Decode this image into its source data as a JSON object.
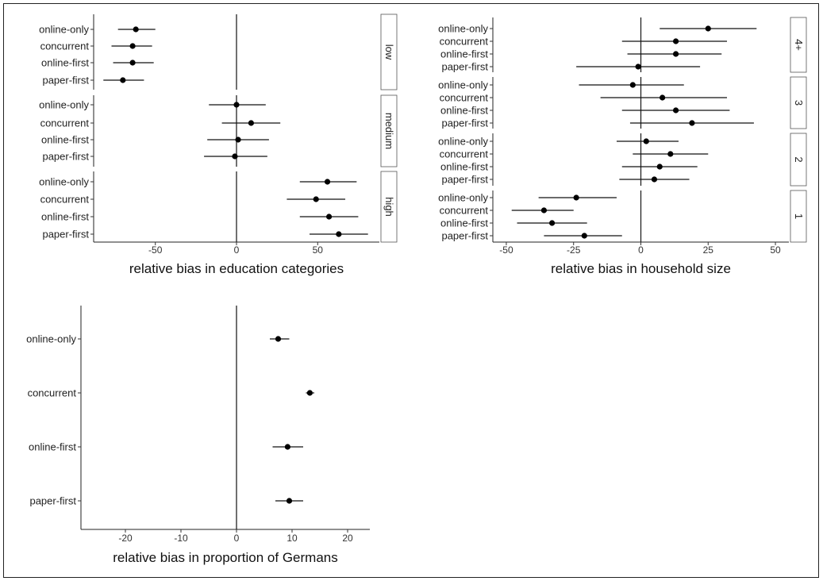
{
  "chart_data": [
    {
      "type": "scatter",
      "subtype": "dot-and-whisker, faceted by education category",
      "xlabel": "relative bias in education categories",
      "xlim": [
        -88,
        88
      ],
      "xticks": [
        -50,
        0,
        50
      ],
      "reference_line": 0,
      "categories": [
        "online-only",
        "concurrent",
        "online-first",
        "paper-first"
      ],
      "facets": [
        {
          "label": "low",
          "points": [
            {
              "category": "online-only",
              "estimate": -62,
              "lower": -73,
              "upper": -50
            },
            {
              "category": "concurrent",
              "estimate": -64,
              "lower": -77,
              "upper": -52
            },
            {
              "category": "online-first",
              "estimate": -64,
              "lower": -76,
              "upper": -51
            },
            {
              "category": "paper-first",
              "estimate": -70,
              "lower": -82,
              "upper": -57
            }
          ]
        },
        {
          "label": "medium",
          "points": [
            {
              "category": "online-only",
              "estimate": 0,
              "lower": -17,
              "upper": 18
            },
            {
              "category": "concurrent",
              "estimate": 9,
              "lower": -9,
              "upper": 27
            },
            {
              "category": "online-first",
              "estimate": 1,
              "lower": -18,
              "upper": 20
            },
            {
              "category": "paper-first",
              "estimate": -1,
              "lower": -20,
              "upper": 19
            }
          ]
        },
        {
          "label": "high",
          "points": [
            {
              "category": "online-only",
              "estimate": 56,
              "lower": 39,
              "upper": 74
            },
            {
              "category": "concurrent",
              "estimate": 49,
              "lower": 31,
              "upper": 67
            },
            {
              "category": "online-first",
              "estimate": 57,
              "lower": 39,
              "upper": 75
            },
            {
              "category": "paper-first",
              "estimate": 63,
              "lower": 45,
              "upper": 81
            }
          ]
        }
      ]
    },
    {
      "type": "scatter",
      "subtype": "dot-and-whisker, faceted by household size",
      "xlabel": "relative bias in household size",
      "xlim": [
        -55,
        55
      ],
      "xticks": [
        -50,
        -25,
        0,
        25,
        50
      ],
      "reference_line": 0,
      "categories": [
        "online-only",
        "concurrent",
        "online-first",
        "paper-first"
      ],
      "facets": [
        {
          "label": "4+",
          "points": [
            {
              "category": "online-only",
              "estimate": 25,
              "lower": 7,
              "upper": 43
            },
            {
              "category": "concurrent",
              "estimate": 13,
              "lower": -7,
              "upper": 32
            },
            {
              "category": "online-first",
              "estimate": 13,
              "lower": -5,
              "upper": 30
            },
            {
              "category": "paper-first",
              "estimate": -1,
              "lower": -24,
              "upper": 22
            }
          ]
        },
        {
          "label": "3",
          "points": [
            {
              "category": "online-only",
              "estimate": -3,
              "lower": -23,
              "upper": 16
            },
            {
              "category": "concurrent",
              "estimate": 8,
              "lower": -15,
              "upper": 32
            },
            {
              "category": "online-first",
              "estimate": 13,
              "lower": -7,
              "upper": 33
            },
            {
              "category": "paper-first",
              "estimate": 19,
              "lower": -4,
              "upper": 42
            }
          ]
        },
        {
          "label": "2",
          "points": [
            {
              "category": "online-only",
              "estimate": 2,
              "lower": -9,
              "upper": 14
            },
            {
              "category": "concurrent",
              "estimate": 11,
              "lower": -3,
              "upper": 25
            },
            {
              "category": "online-first",
              "estimate": 7,
              "lower": -7,
              "upper": 21
            },
            {
              "category": "paper-first",
              "estimate": 5,
              "lower": -8,
              "upper": 18
            }
          ]
        },
        {
          "label": "1",
          "points": [
            {
              "category": "online-only",
              "estimate": -24,
              "lower": -38,
              "upper": -9
            },
            {
              "category": "concurrent",
              "estimate": -36,
              "lower": -48,
              "upper": -25
            },
            {
              "category": "online-first",
              "estimate": -33,
              "lower": -46,
              "upper": -20
            },
            {
              "category": "paper-first",
              "estimate": -21,
              "lower": -36,
              "upper": -7
            }
          ]
        }
      ]
    },
    {
      "type": "scatter",
      "subtype": "dot-and-whisker",
      "xlabel": "relative bias in proportion of Germans",
      "xlim": [
        -28,
        24
      ],
      "xticks": [
        -20,
        -10,
        0,
        10,
        20
      ],
      "reference_line": 0,
      "categories": [
        "online-only",
        "concurrent",
        "online-first",
        "paper-first"
      ],
      "facets": [
        {
          "label": "",
          "points": [
            {
              "category": "online-only",
              "estimate": 7.5,
              "lower": 6,
              "upper": 9.5
            },
            {
              "category": "concurrent",
              "estimate": 13.2,
              "lower": 12.5,
              "upper": 14
            },
            {
              "category": "online-first",
              "estimate": 9.2,
              "lower": 6.5,
              "upper": 12
            },
            {
              "category": "paper-first",
              "estimate": 9.5,
              "lower": 7,
              "upper": 12
            }
          ]
        }
      ]
    }
  ]
}
